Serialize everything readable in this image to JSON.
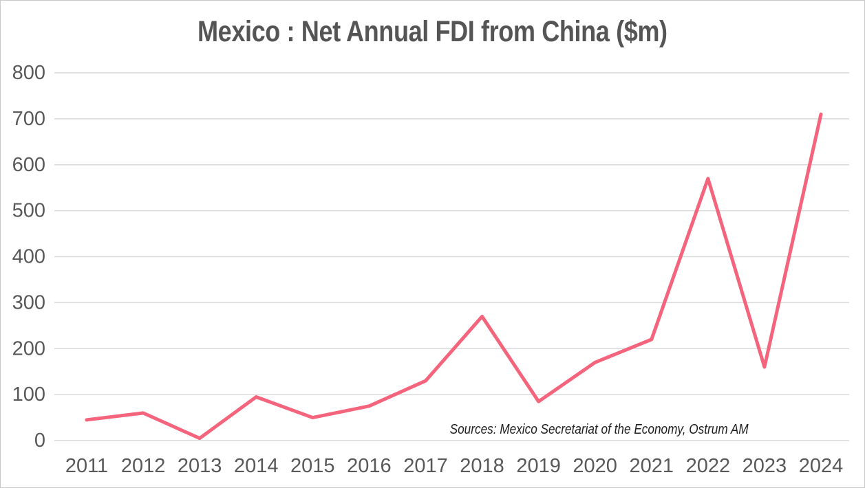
{
  "figure": {
    "background": "#FFFFFF",
    "border_color": "#C9C9C9"
  },
  "chart_data": {
    "type": "line",
    "title": "Mexico : Net Annual FDI from China ($m)",
    "source_note": "Sources: Mexico Secretariat of the Economy, Ostrum AM",
    "categories": [
      "2011",
      "2012",
      "2013",
      "2014",
      "2015",
      "2016",
      "2017",
      "2018",
      "2019",
      "2020",
      "2021",
      "2022",
      "2023",
      "2024"
    ],
    "series": [
      {
        "name": "Net annual FDI from China ($m)",
        "values": [
          45,
          60,
          5,
          95,
          50,
          75,
          130,
          270,
          85,
          170,
          220,
          570,
          160,
          710
        ]
      }
    ],
    "xlabel": "",
    "ylabel": "",
    "ylim": [
      0,
      800
    ],
    "ytick_step": 100,
    "yticks": [
      0,
      100,
      200,
      300,
      400,
      500,
      600,
      700,
      800
    ],
    "grid": true,
    "legend": false,
    "line_color": "#F4647C",
    "grid_color": "#D9D9D9",
    "tick_color": "#595959",
    "title_color": "#555555"
  }
}
